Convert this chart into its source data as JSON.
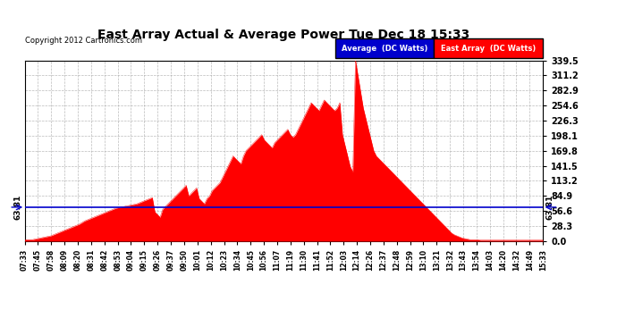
{
  "title": "East Array Actual & Average Power Tue Dec 18 15:33",
  "copyright": "Copyright 2012 Cartronics.com",
  "average_value": 63.81,
  "ymin": 0.0,
  "ymax": 339.5,
  "yticks": [
    0.0,
    28.3,
    56.6,
    84.9,
    113.2,
    141.5,
    169.8,
    198.1,
    226.3,
    254.6,
    282.9,
    311.2,
    339.5
  ],
  "bg_color": "#ffffff",
  "fig_color": "#ffffff",
  "line_color_avg": "#0000cc",
  "fill_color": "#ff0000",
  "grid_color": "#aaaaaa",
  "title_color": "#000000",
  "legend_avg_bg": "#0000cc",
  "legend_east_bg": "#ff0000",
  "legend_avg_text": "Average  (DC Watts)",
  "legend_east_text": "East Array  (DC Watts)",
  "xtick_labels": [
    "07:33",
    "07:45",
    "07:58",
    "08:09",
    "08:20",
    "08:31",
    "08:42",
    "08:53",
    "09:04",
    "09:15",
    "09:26",
    "09:37",
    "09:50",
    "10:01",
    "10:12",
    "10:23",
    "10:34",
    "10:45",
    "10:56",
    "11:07",
    "11:19",
    "11:30",
    "11:41",
    "11:52",
    "12:03",
    "12:14",
    "12:26",
    "12:37",
    "12:48",
    "12:59",
    "13:10",
    "13:21",
    "13:32",
    "13:43",
    "13:54",
    "14:03",
    "14:20",
    "14:32",
    "14:49",
    "15:33"
  ],
  "solar_data": [
    3,
    3,
    3,
    3,
    4,
    5,
    6,
    7,
    8,
    9,
    10,
    12,
    14,
    16,
    18,
    20,
    22,
    24,
    26,
    28,
    30,
    32,
    35,
    38,
    40,
    42,
    44,
    46,
    48,
    50,
    52,
    54,
    56,
    58,
    60,
    62,
    63,
    64,
    65,
    66,
    67,
    68,
    69,
    70,
    72,
    74,
    76,
    78,
    80,
    82,
    55,
    50,
    45,
    60,
    65,
    70,
    75,
    80,
    85,
    90,
    95,
    100,
    105,
    85,
    90,
    95,
    100,
    80,
    75,
    70,
    80,
    85,
    95,
    100,
    105,
    110,
    120,
    130,
    140,
    150,
    160,
    155,
    150,
    145,
    160,
    170,
    175,
    180,
    185,
    190,
    195,
    200,
    190,
    185,
    180,
    175,
    185,
    190,
    195,
    200,
    205,
    210,
    200,
    195,
    200,
    210,
    220,
    230,
    240,
    250,
    260,
    255,
    250,
    245,
    255,
    265,
    260,
    255,
    250,
    245,
    250,
    260,
    200,
    180,
    160,
    140,
    130,
    340,
    310,
    280,
    250,
    230,
    210,
    190,
    170,
    160,
    155,
    150,
    145,
    140,
    135,
    130,
    125,
    120,
    115,
    110,
    105,
    100,
    95,
    90,
    85,
    80,
    75,
    70,
    65,
    60,
    55,
    50,
    45,
    40,
    35,
    30,
    25,
    20,
    15,
    12,
    10,
    8,
    6,
    5,
    4,
    3,
    3,
    3,
    3,
    2,
    2,
    2,
    2,
    2,
    2,
    2,
    2,
    2,
    2,
    2,
    2,
    2,
    2,
    2,
    2,
    2,
    2,
    2,
    2,
    2,
    2,
    2,
    2,
    2
  ]
}
